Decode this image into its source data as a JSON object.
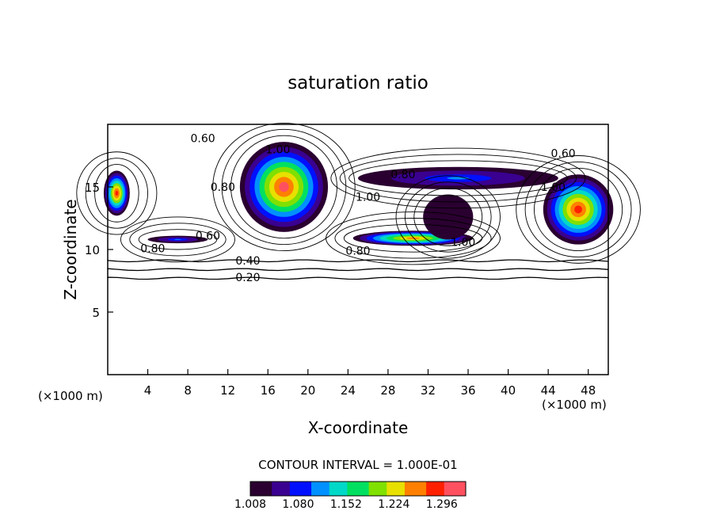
{
  "chart_data": {
    "type": "heatmap",
    "title": "saturation ratio",
    "xlabel": "X-coordinate",
    "ylabel": "Z-coordinate",
    "x_unit_left": "(×1000 m)",
    "x_unit_right": "(×1000 m)",
    "xlim": [
      0,
      50
    ],
    "ylim": [
      0,
      20
    ],
    "x_ticks": [
      4,
      8,
      12,
      16,
      20,
      24,
      28,
      32,
      36,
      40,
      44,
      48
    ],
    "y_ticks": [
      5,
      10,
      15
    ],
    "contour_interval_text": "CONTOUR INTERVAL = 1.000E-01",
    "contour_interval": 0.1,
    "colorbar": {
      "min": 1.008,
      "max": 1.332,
      "tick_values": [
        1.008,
        1.08,
        1.152,
        1.224,
        1.296
      ],
      "tick_labels": [
        "1.008",
        "1.080",
        "1.152",
        "1.224",
        "1.296"
      ],
      "colors": [
        "#2a0030",
        "#3a0090",
        "#0010ff",
        "#0090ff",
        "#00d8c8",
        "#00e060",
        "#80e000",
        "#e8e000",
        "#ff8000",
        "#ff2000",
        "#ff5060"
      ]
    },
    "contour_labels": [
      {
        "text": "0.20",
        "x": 14.0,
        "y": 7.8
      },
      {
        "text": "0.40",
        "x": 14.0,
        "y": 9.1
      },
      {
        "text": "0.60",
        "x": 9.5,
        "y": 18.9
      },
      {
        "text": "0.60",
        "x": 10.0,
        "y": 11.1
      },
      {
        "text": "0.60",
        "x": 45.5,
        "y": 17.7
      },
      {
        "text": "0.80",
        "x": 4.5,
        "y": 10.1
      },
      {
        "text": "0.80",
        "x": 25.0,
        "y": 9.9
      },
      {
        "text": "0.80",
        "x": 29.5,
        "y": 16.0
      },
      {
        "text": "0.80",
        "x": 11.5,
        "y": 15.0
      },
      {
        "text": "1.00",
        "x": 17.0,
        "y": 18.0
      },
      {
        "text": "1.00",
        "x": 26.0,
        "y": 14.2
      },
      {
        "text": "1.00",
        "x": 35.5,
        "y": 10.6
      },
      {
        "text": "1.00",
        "x": 44.5,
        "y": 15.0
      }
    ],
    "contour_levels": [
      {
        "value": 0.2,
        "z": 7.7
      },
      {
        "value": 0.3,
        "z": 8.4
      },
      {
        "value": 0.4,
        "z": 9.1
      }
    ],
    "supersaturated_regions": [
      {
        "x_center": 0.9,
        "z_center": 14.5,
        "x_halfwidth": 1.3,
        "z_halfwidth": 1.8,
        "peak": 1.3
      },
      {
        "x_center": 17.6,
        "z_center": 15.0,
        "x_halfwidth": 4.4,
        "z_halfwidth": 3.6,
        "peak": 1.31
      },
      {
        "x_center": 30.5,
        "z_center": 10.9,
        "x_halfwidth": 6.0,
        "z_halfwidth": 0.6,
        "peak": 1.26
      },
      {
        "x_center": 34.0,
        "z_center": 12.6,
        "x_halfwidth": 2.5,
        "z_halfwidth": 1.8,
        "peak": 1.02
      },
      {
        "x_center": 35.0,
        "z_center": 15.7,
        "x_halfwidth": 10.0,
        "z_halfwidth": 0.9,
        "peak": 1.1
      },
      {
        "x_center": 47.0,
        "z_center": 13.2,
        "x_halfwidth": 3.5,
        "z_halfwidth": 2.8,
        "peak": 1.3
      },
      {
        "x_center": 7.0,
        "z_center": 10.8,
        "x_halfwidth": 3.0,
        "z_halfwidth": 0.3,
        "peak": 1.1
      }
    ],
    "grid": false,
    "legend": "none"
  }
}
